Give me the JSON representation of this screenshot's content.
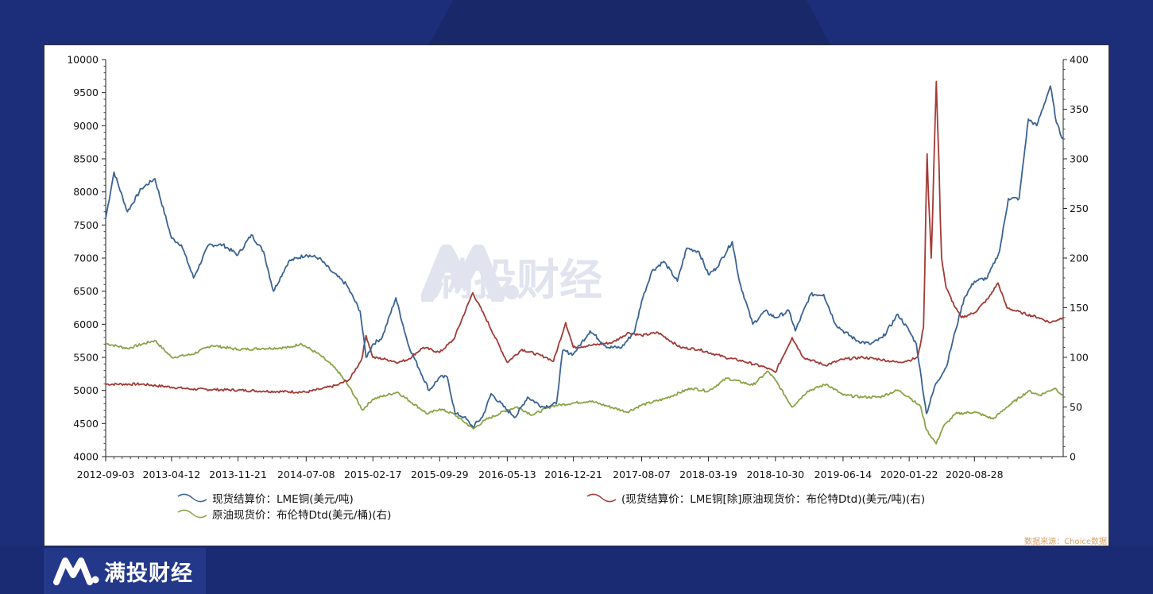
{
  "brand": {
    "name": "满投财经"
  },
  "watermark": {
    "text": "满投财经"
  },
  "source": "数据来源：Choice数据",
  "colors": {
    "copper": "#3a6394",
    "ratio": "#a33a35",
    "oil": "#8aa346",
    "background": "#1c2e7a"
  },
  "chart_data": {
    "type": "line",
    "x_ticks": [
      "2012-09-03",
      "2013-04-12",
      "2013-11-21",
      "2014-07-08",
      "2015-02-17",
      "2015-09-29",
      "2016-05-13",
      "2016-12-21",
      "2017-08-07",
      "2018-03-19",
      "2018-10-30",
      "2019-06-14",
      "2020-01-22",
      "2020-08-28"
    ],
    "y_left": {
      "min": 4000,
      "max": 10000,
      "ticks": [
        "4000",
        "4500",
        "5000",
        "5500",
        "6000",
        "6500",
        "7000",
        "7500",
        "8000",
        "8500",
        "9000",
        "9500",
        "10000"
      ]
    },
    "y_right": {
      "min": 0,
      "max": 400,
      "ticks": [
        "0",
        "50",
        "100",
        "150",
        "200",
        "250",
        "300",
        "350",
        "400"
      ]
    },
    "series": [
      {
        "name": "现货结算价：LME铜(美元/吨)",
        "axis": "left",
        "color": "#3a6394",
        "points": [
          [
            "2012-09-03",
            7600
          ],
          [
            "2012-10-01",
            8300
          ],
          [
            "2012-11-15",
            7700
          ],
          [
            "2013-01-01",
            8050
          ],
          [
            "2013-02-15",
            8200
          ],
          [
            "2013-04-12",
            7300
          ],
          [
            "2013-05-15",
            7200
          ],
          [
            "2013-06-25",
            6700
          ],
          [
            "2013-08-15",
            7200
          ],
          [
            "2013-10-01",
            7200
          ],
          [
            "2013-11-21",
            7050
          ],
          [
            "2014-01-05",
            7350
          ],
          [
            "2014-02-15",
            7100
          ],
          [
            "2014-03-20",
            6500
          ],
          [
            "2014-05-10",
            6950
          ],
          [
            "2014-07-08",
            7050
          ],
          [
            "2014-08-20",
            7000
          ],
          [
            "2014-10-01",
            6800
          ],
          [
            "2014-11-20",
            6600
          ],
          [
            "2015-01-05",
            6200
          ],
          [
            "2015-01-25",
            5500
          ],
          [
            "2015-02-17",
            5700
          ],
          [
            "2015-03-20",
            5800
          ],
          [
            "2015-05-05",
            6400
          ],
          [
            "2015-06-15",
            5700
          ],
          [
            "2015-07-25",
            5300
          ],
          [
            "2015-08-25",
            5000
          ],
          [
            "2015-09-29",
            5200
          ],
          [
            "2015-10-25",
            5200
          ],
          [
            "2015-11-20",
            4650
          ],
          [
            "2015-12-20",
            4600
          ],
          [
            "2016-01-18",
            4450
          ],
          [
            "2016-02-20",
            4600
          ],
          [
            "2016-03-20",
            4950
          ],
          [
            "2016-05-13",
            4700
          ],
          [
            "2016-06-10",
            4600
          ],
          [
            "2016-07-20",
            4900
          ],
          [
            "2016-09-10",
            4750
          ],
          [
            "2016-10-25",
            4800
          ],
          [
            "2016-11-15",
            5600
          ],
          [
            "2016-12-21",
            5550
          ],
          [
            "2017-02-15",
            5900
          ],
          [
            "2017-04-15",
            5650
          ],
          [
            "2017-06-01",
            5650
          ],
          [
            "2017-07-15",
            5900
          ],
          [
            "2017-08-07",
            6350
          ],
          [
            "2017-09-10",
            6800
          ],
          [
            "2017-10-20",
            6950
          ],
          [
            "2017-12-05",
            6650
          ],
          [
            "2018-01-05",
            7150
          ],
          [
            "2018-02-15",
            7100
          ],
          [
            "2018-03-19",
            6750
          ],
          [
            "2018-04-15",
            6850
          ],
          [
            "2018-06-07",
            7250
          ],
          [
            "2018-07-01",
            6650
          ],
          [
            "2018-08-15",
            6000
          ],
          [
            "2018-09-25",
            6200
          ],
          [
            "2018-10-30",
            6100
          ],
          [
            "2018-12-15",
            6200
          ],
          [
            "2019-01-05",
            5900
          ],
          [
            "2019-02-25",
            6450
          ],
          [
            "2019-04-10",
            6450
          ],
          [
            "2019-05-20",
            6000
          ],
          [
            "2019-06-14",
            5900
          ],
          [
            "2019-08-01",
            5750
          ],
          [
            "2019-09-15",
            5700
          ],
          [
            "2019-10-25",
            5800
          ],
          [
            "2019-12-15",
            6150
          ],
          [
            "2020-01-22",
            5900
          ],
          [
            "2020-02-15",
            5700
          ],
          [
            "2020-03-20",
            4650
          ],
          [
            "2020-04-20",
            5100
          ],
          [
            "2020-05-25",
            5350
          ],
          [
            "2020-06-25",
            5900
          ],
          [
            "2020-07-25",
            6400
          ],
          [
            "2020-08-28",
            6650
          ],
          [
            "2020-10-10",
            6700
          ],
          [
            "2020-11-20",
            7100
          ],
          [
            "2020-12-20",
            7900
          ],
          [
            "2021-01-25",
            7900
          ],
          [
            "2021-02-25",
            9100
          ],
          [
            "2021-03-25",
            9000
          ],
          [
            "2021-05-10",
            9600
          ],
          [
            "2021-05-30",
            9050
          ],
          [
            "2021-06-20",
            8800
          ]
        ]
      },
      {
        "name": "(现货结算价：LME铜[除]原油现货价：布伦特Dtd)(美元/吨)(右)",
        "axis": "right",
        "color": "#a33a35",
        "points": [
          [
            "2012-09-03",
            73
          ],
          [
            "2013-01-01",
            73
          ],
          [
            "2013-04-12",
            70
          ],
          [
            "2013-06-20",
            68
          ],
          [
            "2013-11-21",
            67
          ],
          [
            "2014-02-15",
            66
          ],
          [
            "2014-07-08",
            65
          ],
          [
            "2014-08-25",
            68
          ],
          [
            "2014-10-20",
            72
          ],
          [
            "2014-12-01",
            78
          ],
          [
            "2015-01-10",
            98
          ],
          [
            "2015-01-25",
            122
          ],
          [
            "2015-02-17",
            100
          ],
          [
            "2015-04-01",
            98
          ],
          [
            "2015-05-15",
            95
          ],
          [
            "2015-06-15",
            98
          ],
          [
            "2015-08-05",
            110
          ],
          [
            "2015-09-29",
            105
          ],
          [
            "2015-11-15",
            118
          ],
          [
            "2016-01-18",
            165
          ],
          [
            "2016-03-01",
            140
          ],
          [
            "2016-05-13",
            95
          ],
          [
            "2016-07-01",
            108
          ],
          [
            "2016-09-20",
            100
          ],
          [
            "2016-10-15",
            96
          ],
          [
            "2016-11-25",
            135
          ],
          [
            "2016-12-21",
            110
          ],
          [
            "2017-02-15",
            112
          ],
          [
            "2017-05-01",
            115
          ],
          [
            "2017-06-25",
            125
          ],
          [
            "2017-08-07",
            122
          ],
          [
            "2017-10-01",
            125
          ],
          [
            "2017-12-15",
            110
          ],
          [
            "2018-02-15",
            108
          ],
          [
            "2018-05-15",
            100
          ],
          [
            "2018-07-15",
            96
          ],
          [
            "2018-09-25",
            90
          ],
          [
            "2018-10-30",
            85
          ],
          [
            "2018-12-25",
            120
          ],
          [
            "2019-02-01",
            100
          ],
          [
            "2019-04-15",
            92
          ],
          [
            "2019-06-14",
            98
          ],
          [
            "2019-08-20",
            100
          ],
          [
            "2019-10-15",
            98
          ],
          [
            "2019-12-15",
            95
          ],
          [
            "2020-01-22",
            97
          ],
          [
            "2020-02-20",
            100
          ],
          [
            "2020-03-10",
            130
          ],
          [
            "2020-03-22",
            305
          ],
          [
            "2020-04-05",
            200
          ],
          [
            "2020-04-22",
            378
          ],
          [
            "2020-05-10",
            200
          ],
          [
            "2020-05-25",
            170
          ],
          [
            "2020-06-25",
            150
          ],
          [
            "2020-07-15",
            140
          ],
          [
            "2020-08-28",
            145
          ],
          [
            "2020-10-15",
            160
          ],
          [
            "2020-11-15",
            175
          ],
          [
            "2020-12-15",
            150
          ],
          [
            "2021-02-01",
            145
          ],
          [
            "2021-04-01",
            140
          ],
          [
            "2021-05-10",
            135
          ],
          [
            "2021-06-20",
            140
          ]
        ]
      },
      {
        "name": "原油现货价：布伦特Dtd(美元/桶)(右)",
        "axis": "right",
        "color": "#8aa346",
        "points": [
          [
            "2012-09-03",
            114
          ],
          [
            "2012-11-15",
            109
          ],
          [
            "2013-02-15",
            117
          ],
          [
            "2013-04-12",
            100
          ],
          [
            "2013-06-20",
            103
          ],
          [
            "2013-08-25",
            112
          ],
          [
            "2013-11-21",
            108
          ],
          [
            "2014-02-15",
            109
          ],
          [
            "2014-05-15",
            110
          ],
          [
            "2014-06-20",
            114
          ],
          [
            "2014-08-25",
            102
          ],
          [
            "2014-10-20",
            87
          ],
          [
            "2014-11-30",
            70
          ],
          [
            "2015-01-13",
            47
          ],
          [
            "2015-02-17",
            58
          ],
          [
            "2015-05-10",
            65
          ],
          [
            "2015-08-20",
            43
          ],
          [
            "2015-09-29",
            48
          ],
          [
            "2015-11-15",
            43
          ],
          [
            "2016-01-20",
            28
          ],
          [
            "2016-03-01",
            37
          ],
          [
            "2016-05-13",
            47
          ],
          [
            "2016-06-15",
            50
          ],
          [
            "2016-08-05",
            42
          ],
          [
            "2016-10-10",
            51
          ],
          [
            "2016-12-21",
            54
          ],
          [
            "2017-02-15",
            56
          ],
          [
            "2017-06-20",
            45
          ],
          [
            "2017-08-07",
            52
          ],
          [
            "2017-10-20",
            58
          ],
          [
            "2018-01-20",
            69
          ],
          [
            "2018-03-19",
            66
          ],
          [
            "2018-05-20",
            79
          ],
          [
            "2018-08-15",
            72
          ],
          [
            "2018-10-05",
            86
          ],
          [
            "2018-10-30",
            77
          ],
          [
            "2018-12-25",
            50
          ],
          [
            "2019-02-15",
            66
          ],
          [
            "2019-04-20",
            73
          ],
          [
            "2019-06-14",
            62
          ],
          [
            "2019-08-20",
            60
          ],
          [
            "2019-10-15",
            60
          ],
          [
            "2019-12-15",
            67
          ],
          [
            "2020-01-22",
            60
          ],
          [
            "2020-03-01",
            50
          ],
          [
            "2020-03-20",
            27
          ],
          [
            "2020-04-22",
            13
          ],
          [
            "2020-05-15",
            30
          ],
          [
            "2020-06-25",
            43
          ],
          [
            "2020-08-28",
            45
          ],
          [
            "2020-10-30",
            38
          ],
          [
            "2020-12-15",
            50
          ],
          [
            "2021-02-25",
            66
          ],
          [
            "2021-04-05",
            62
          ],
          [
            "2021-05-25",
            69
          ],
          [
            "2021-06-20",
            62
          ]
        ]
      }
    ]
  }
}
